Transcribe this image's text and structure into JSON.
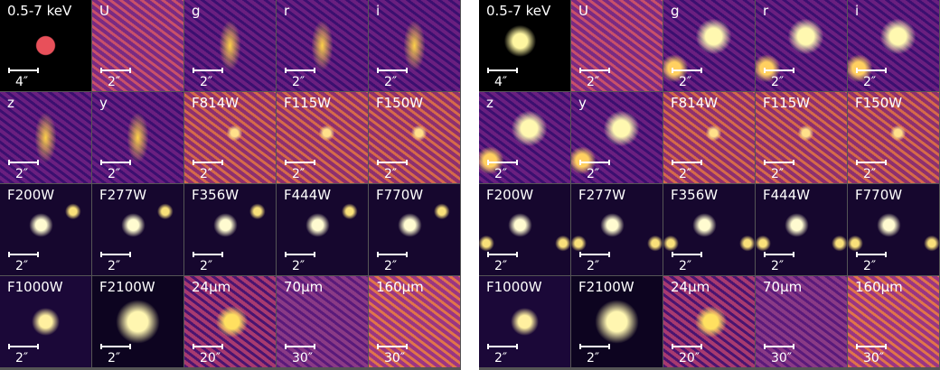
{
  "panels": [
    {
      "tiles": [
        {
          "band": "0.5-7 keV",
          "scale": "4″"
        },
        {
          "band": "U",
          "scale": "2″"
        },
        {
          "band": "g",
          "scale": "2″"
        },
        {
          "band": "r",
          "scale": "2″"
        },
        {
          "band": "i",
          "scale": "2″"
        },
        {
          "band": "z",
          "scale": "2″"
        },
        {
          "band": "y",
          "scale": "2″"
        },
        {
          "band": "F814W",
          "scale": "2″"
        },
        {
          "band": "F115W",
          "scale": "2″"
        },
        {
          "band": "F150W",
          "scale": "2″"
        },
        {
          "band": "F200W",
          "scale": "2″"
        },
        {
          "band": "F277W",
          "scale": "2″"
        },
        {
          "band": "F356W",
          "scale": "2″"
        },
        {
          "band": "F444W",
          "scale": "2″"
        },
        {
          "band": "F770W",
          "scale": "2″"
        },
        {
          "band": "F1000W",
          "scale": "2″"
        },
        {
          "band": "F2100W",
          "scale": "2″"
        },
        {
          "band": "24μm",
          "scale": "20″"
        },
        {
          "band": "70μm",
          "scale": "30″"
        },
        {
          "band": "160μm",
          "scale": "30″"
        }
      ]
    },
    {
      "tiles": [
        {
          "band": "0.5-7 keV",
          "scale": "4″"
        },
        {
          "band": "U",
          "scale": "2″"
        },
        {
          "band": "g",
          "scale": "2″"
        },
        {
          "band": "r",
          "scale": "2″"
        },
        {
          "band": "i",
          "scale": "2″"
        },
        {
          "band": "z",
          "scale": "2″"
        },
        {
          "band": "y",
          "scale": "2″"
        },
        {
          "band": "F814W",
          "scale": "2″"
        },
        {
          "band": "F115W",
          "scale": "2″"
        },
        {
          "band": "F150W",
          "scale": "2″"
        },
        {
          "band": "F200W",
          "scale": "2″"
        },
        {
          "band": "F277W",
          "scale": "2″"
        },
        {
          "band": "F356W",
          "scale": "2″"
        },
        {
          "band": "F444W",
          "scale": "2″"
        },
        {
          "band": "F770W",
          "scale": "2″"
        },
        {
          "band": "F1000W",
          "scale": "2″"
        },
        {
          "band": "F2100W",
          "scale": "2″"
        },
        {
          "band": "24μm",
          "scale": "20″"
        },
        {
          "band": "70μm",
          "scale": "30″"
        },
        {
          "band": "160μm",
          "scale": "30″"
        }
      ]
    }
  ]
}
